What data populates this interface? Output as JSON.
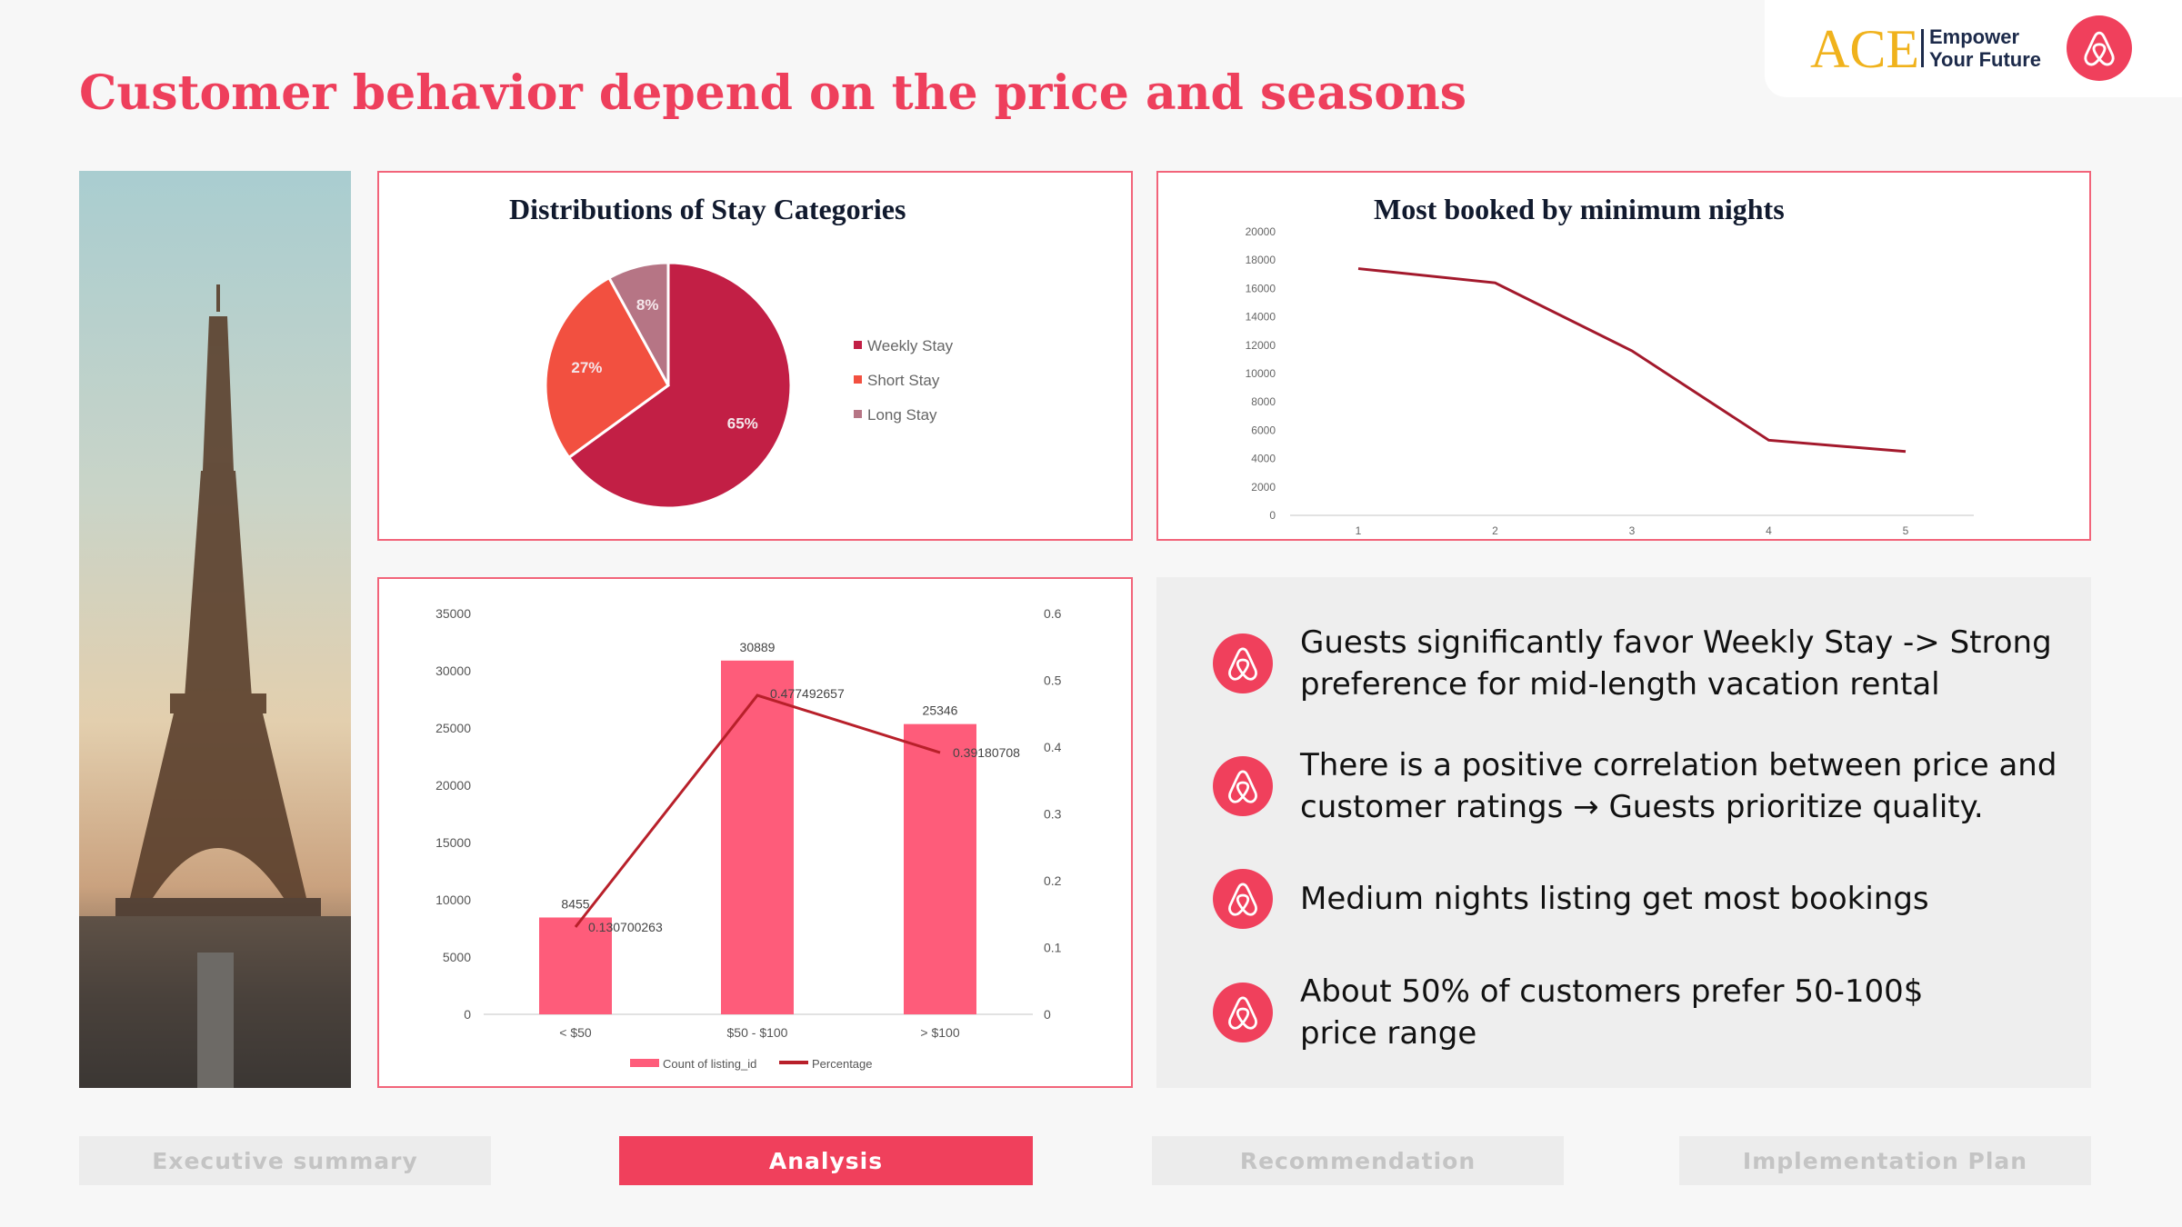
{
  "title": "Customer behavior depend on the price and seasons",
  "logo": {
    "brand": "ACE",
    "tagline_1": "Empower",
    "tagline_2": "Your Future",
    "icon": "airbnb-logo-icon",
    "accent": "#f0405c"
  },
  "pie_card": {
    "title": "Distributions of Stay Categories"
  },
  "line_card": {
    "title": "Most booked by minimum nights"
  },
  "insights": [
    {
      "icon": "airbnb-logo-icon",
      "text": "Guests significantly favor Weekly Stay -> Strong preference for mid-length vacation rental"
    },
    {
      "icon": "airbnb-logo-icon",
      "text": "There is a positive correlation between price and customer ratings → Guests prioritize quality."
    },
    {
      "icon": "airbnb-logo-icon",
      "text": "Medium nights listing get most bookings"
    },
    {
      "icon": "airbnb-logo-icon",
      "text": "About 50% of customers prefer 50-100$ price range"
    }
  ],
  "tabs": [
    {
      "label": "Executive summary",
      "active": false
    },
    {
      "label": "Analysis",
      "active": true
    },
    {
      "label": "Recommendation",
      "active": false
    },
    {
      "label": "Implementation Plan",
      "active": false
    }
  ],
  "chart_data": [
    {
      "type": "pie",
      "title": "Distributions of Stay Categories",
      "labels": [
        "Weekly Stay",
        "Short Stay",
        "Long Stay"
      ],
      "values": [
        65,
        27,
        8
      ],
      "data_labels": [
        "65%",
        "27%",
        "8%"
      ],
      "colors": [
        "#c21f45",
        "#f25040",
        "#b67585"
      ],
      "legend": "right"
    },
    {
      "type": "line",
      "title": "Most booked by minimum nights",
      "x": [
        1,
        2,
        3,
        4,
        5
      ],
      "y": [
        17400,
        16400,
        11600,
        5300,
        4500
      ],
      "ylim": [
        0,
        20000
      ],
      "yticks": [
        0,
        2000,
        4000,
        6000,
        8000,
        10000,
        12000,
        14000,
        16000,
        18000,
        20000
      ],
      "color": "#a3192c",
      "grid": false
    },
    {
      "type": "bar",
      "categories": [
        "< $50",
        "$50 - $100",
        "> $100"
      ],
      "series": [
        {
          "name": "Count of listing_id",
          "type": "bar",
          "axis": "left",
          "values": [
            8455,
            30889,
            25346
          ],
          "labels": [
            "8455",
            "30889",
            "25346"
          ],
          "color": "#fe5c7a"
        },
        {
          "name": "Percentage",
          "type": "line",
          "axis": "right",
          "values": [
            0.130700263,
            0.477492657,
            0.39180708
          ],
          "labels": [
            "0.130700263",
            "0.477492657",
            "0.39180708"
          ],
          "color": "#b8202a"
        }
      ],
      "ylim": [
        0,
        35000
      ],
      "yticks": [
        0,
        5000,
        10000,
        15000,
        20000,
        25000,
        30000,
        35000
      ],
      "y2lim": [
        0,
        0.6
      ],
      "y2ticks": [
        "0",
        "0.1",
        "0.2",
        "0.3",
        "0.4",
        "0.5",
        "0.6"
      ],
      "legend": "bottom",
      "grid": false
    }
  ]
}
